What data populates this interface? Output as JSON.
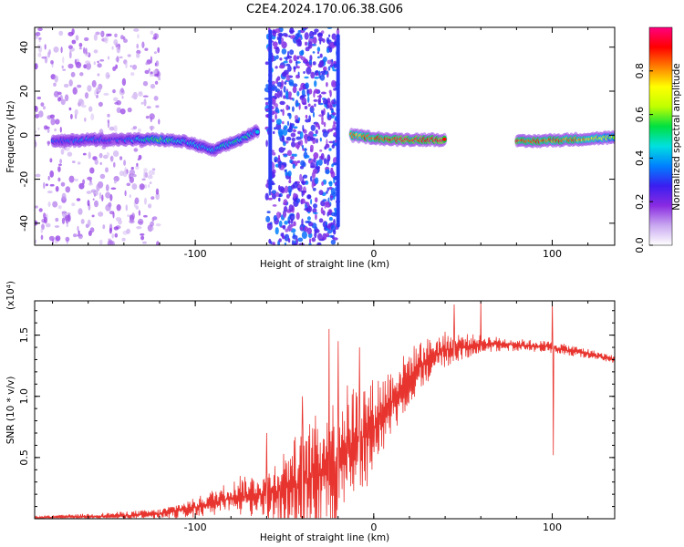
{
  "title": "C2E4.2024.170.06.38.G06",
  "colors": {
    "snr_line": "#e8342e",
    "axes": "#000000",
    "background": "#ffffff",
    "colormap": [
      "#ffffff",
      "#c9a8f0",
      "#8a2be2",
      "#3a1ef0",
      "#0080ff",
      "#00e0e0",
      "#00e040",
      "#c0ff00",
      "#ffff00",
      "#ff8000",
      "#ff0000",
      "#ff0080"
    ]
  },
  "chart_data": [
    {
      "type": "heatmap",
      "xlabel": "Height of straight line (km)",
      "ylabel": "Frequency (Hz)",
      "xlim": [
        -190,
        135
      ],
      "ylim": [
        -50,
        49
      ],
      "x_ticks": [
        {
          "value": -100,
          "label": "-100"
        },
        {
          "value": 0,
          "label": "0"
        },
        {
          "value": 100,
          "label": "100"
        }
      ],
      "y_ticks": [
        {
          "value": -40,
          "label": "-40"
        },
        {
          "value": -20,
          "label": "-20"
        },
        {
          "value": 0,
          "label": "0"
        },
        {
          "value": 20,
          "label": "20"
        },
        {
          "value": 40,
          "label": "40"
        }
      ],
      "colorbar": {
        "label": "Normalized spectral amplitude",
        "range": [
          0,
          1
        ],
        "ticks": [
          {
            "value": 0.0,
            "label": "0.0"
          },
          {
            "value": 0.2,
            "label": "0.2"
          },
          {
            "value": 0.4,
            "label": "0.4"
          },
          {
            "value": 0.6,
            "label": "0.6"
          },
          {
            "value": 0.8,
            "label": "0.8"
          }
        ]
      },
      "features": {
        "ridge": [
          {
            "x": -180,
            "f": -3,
            "amp": 0.3
          },
          {
            "x": -160,
            "f": -2,
            "amp": 0.35
          },
          {
            "x": -140,
            "f": -2,
            "amp": 0.3
          },
          {
            "x": -120,
            "f": -2,
            "amp": 0.55
          },
          {
            "x": -105,
            "f": -3,
            "amp": 0.4
          },
          {
            "x": -90,
            "f": -7,
            "amp": 0.4
          },
          {
            "x": -75,
            "f": -2,
            "amp": 0.5
          },
          {
            "x": -65,
            "f": 2,
            "amp": 0.4
          },
          {
            "x": -13,
            "f": 0,
            "amp": 0.8
          },
          {
            "x": 10,
            "f": -2,
            "amp": 0.9
          },
          {
            "x": 40,
            "f": -2,
            "amp": 0.95
          },
          {
            "x": 80,
            "f": -3,
            "amp": 0.9
          },
          {
            "x": 110,
            "f": -2,
            "amp": 0.85
          },
          {
            "x": 135,
            "f": -1,
            "amp": 0.6
          }
        ],
        "noise_bands": [
          {
            "from": -190,
            "to": -120,
            "density": "light"
          },
          {
            "from": -60,
            "to": -20,
            "density": "dense"
          }
        ],
        "vertical_stripes": [
          {
            "x": -58,
            "f_range": [
              -25,
              48
            ]
          },
          {
            "x": -20,
            "f_range": [
              -42,
              46
            ]
          }
        ]
      }
    },
    {
      "type": "line",
      "xlabel": "Height of straight line (km)",
      "ylabel": "SNR (10 * v/v)",
      "ylabel_multiplier": "(x10⁴)",
      "xlim": [
        -190,
        135
      ],
      "ylim": [
        0,
        1.78
      ],
      "x_ticks": [
        {
          "value": -100,
          "label": "-100"
        },
        {
          "value": 0,
          "label": "0"
        },
        {
          "value": 100,
          "label": "100"
        }
      ],
      "y_ticks": [
        {
          "value": 0.5,
          "label": "0.5"
        },
        {
          "value": 1.0,
          "label": "1.0"
        },
        {
          "value": 1.5,
          "label": "1.5"
        }
      ],
      "series": [
        {
          "color": "#e8342e",
          "envelope": [
            {
              "x": -190,
              "y": 0.01,
              "spread": 0.01
            },
            {
              "x": -150,
              "y": 0.02,
              "spread": 0.03
            },
            {
              "x": -120,
              "y": 0.04,
              "spread": 0.04
            },
            {
              "x": -100,
              "y": 0.09,
              "spread": 0.08
            },
            {
              "x": -80,
              "y": 0.17,
              "spread": 0.14
            },
            {
              "x": -60,
              "y": 0.2,
              "spread": 0.2
            },
            {
              "x": -40,
              "y": 0.3,
              "spread": 0.45
            },
            {
              "x": -25,
              "y": 0.4,
              "spread": 0.55
            },
            {
              "x": -15,
              "y": 0.55,
              "spread": 0.55
            },
            {
              "x": 0,
              "y": 0.75,
              "spread": 0.4
            },
            {
              "x": 10,
              "y": 0.95,
              "spread": 0.3
            },
            {
              "x": 25,
              "y": 1.25,
              "spread": 0.2
            },
            {
              "x": 40,
              "y": 1.38,
              "spread": 0.15
            },
            {
              "x": 60,
              "y": 1.43,
              "spread": 0.07
            },
            {
              "x": 80,
              "y": 1.42,
              "spread": 0.05
            },
            {
              "x": 100,
              "y": 1.4,
              "spread": 0.05
            },
            {
              "x": 120,
              "y": 1.35,
              "spread": 0.04
            },
            {
              "x": 135,
              "y": 1.3,
              "spread": 0.03
            }
          ],
          "spikes": [
            {
              "x": -75,
              "y": 0.35
            },
            {
              "x": -60,
              "y": 0.7
            },
            {
              "x": -40,
              "y": 1.0
            },
            {
              "x": -25,
              "y": 1.55
            },
            {
              "x": -20,
              "y": 1.45
            },
            {
              "x": -8,
              "y": 1.4
            },
            {
              "x": 45,
              "y": 1.75
            },
            {
              "x": 60,
              "y": 1.78
            },
            {
              "x": 100,
              "y": 1.78
            },
            {
              "x": 100.5,
              "y": 0.52
            }
          ]
        }
      ]
    }
  ]
}
